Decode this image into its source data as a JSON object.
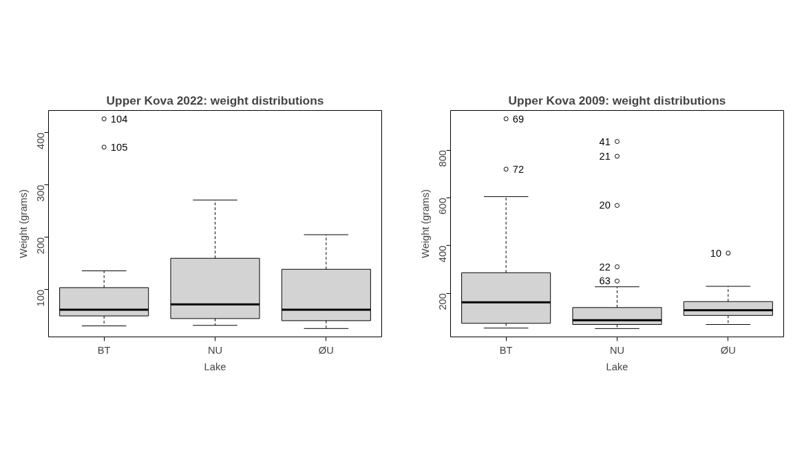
{
  "chart_data": [
    {
      "type": "box",
      "title": "Upper Kova 2022: weight distributions",
      "xlabel": "Lake",
      "ylabel": "Weight (grams)",
      "categories": [
        "BT",
        "NU",
        "ØU"
      ],
      "boxes": [
        {
          "low": 31,
          "q1": 50,
          "median": 62,
          "q3": 104,
          "high": 136,
          "outliers": [
            426,
            372
          ]
        },
        {
          "low": 32,
          "q1": 45,
          "median": 72,
          "q3": 160,
          "high": 271
        },
        {
          "low": 26,
          "q1": 41,
          "median": 62,
          "q3": 139,
          "high": 205
        }
      ],
      "ylim": [
        10,
        442
      ],
      "yticks": [
        100,
        200,
        300,
        400
      ],
      "annotations": [
        "104",
        "105"
      ]
    },
    {
      "type": "box",
      "title": "Upper Kova 2009: weight distributions",
      "xlabel": "Lake",
      "ylabel": "Weight (grams)",
      "categories": [
        "BT",
        "NU",
        "ØU"
      ],
      "boxes": [
        {
          "low": 54,
          "q1": 74,
          "median": 162,
          "q3": 286,
          "high": 605,
          "outliers": [
            931,
            720
          ]
        },
        {
          "low": 52,
          "q1": 69,
          "median": 87,
          "q3": 140,
          "high": 227,
          "outliers": [
            251,
            311,
            568,
            774,
            836
          ]
        },
        {
          "low": 69,
          "q1": 107,
          "median": 129,
          "q3": 165,
          "high": 229,
          "outliers": [
            368
          ]
        }
      ],
      "ylim": [
        17,
        966
      ],
      "yticks": [
        200,
        400,
        600,
        800
      ],
      "annotations": [
        "69",
        "72",
        "63",
        "22",
        "20",
        "21",
        "41",
        "10"
      ]
    }
  ]
}
